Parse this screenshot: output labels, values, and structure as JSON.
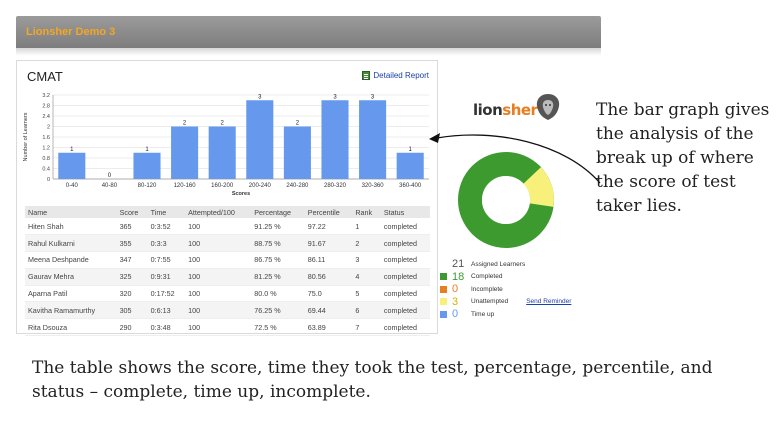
{
  "app": {
    "title": "Lionsher Demo 3"
  },
  "report": {
    "title": "CMAT",
    "detail_link": "Detailed Report"
  },
  "chart_data": {
    "type": "bar",
    "categories": [
      "0-40",
      "40-80",
      "80-120",
      "120-160",
      "160-200",
      "200-240",
      "240-280",
      "280-320",
      "320-360",
      "360-400"
    ],
    "values": [
      1,
      0,
      1,
      2,
      2,
      3,
      2,
      3,
      3,
      1
    ],
    "title": "",
    "xlabel": "Scores",
    "ylabel": "Number of Learners",
    "ylim": [
      0,
      3.2
    ],
    "yticks": [
      "0",
      "0.4",
      "0.8",
      "1.2",
      "1.6",
      "2",
      "2.4",
      "2.8",
      "3.2"
    ],
    "color": "#6699ee",
    "grid": true
  },
  "table": {
    "headers": [
      "Name",
      "Score",
      "Time",
      "Attempted/100",
      "Percentage",
      "Percentile",
      "Rank",
      "Status"
    ],
    "rows": [
      [
        "Hiten Shah",
        "365",
        "0:3:52",
        "100",
        "91.25 %",
        "97.22",
        "1",
        "completed"
      ],
      [
        "Rahul Kulkarni",
        "355",
        "0:3:3",
        "100",
        "88.75 %",
        "91.67",
        "2",
        "completed"
      ],
      [
        "Meena Deshpande",
        "347",
        "0:7:55",
        "100",
        "86.75 %",
        "86.11",
        "3",
        "completed"
      ],
      [
        "Gaurav Mehra",
        "325",
        "0:9:31",
        "100",
        "81.25 %",
        "80.56",
        "4",
        "completed"
      ],
      [
        "Aparna Patil",
        "320",
        "0:17:52",
        "100",
        "80.0 %",
        "75.0",
        "5",
        "completed"
      ],
      [
        "Kavitha Ramamurthy",
        "305",
        "0:6:13",
        "100",
        "76.25 %",
        "69.44",
        "6",
        "completed"
      ],
      [
        "Rita Dsouza",
        "290",
        "0:3:48",
        "100",
        "72.5 %",
        "63.89",
        "7",
        "completed"
      ]
    ]
  },
  "logo": {
    "part1": "lion",
    "part2": "sher"
  },
  "summary": {
    "assigned": {
      "count": "21",
      "label": "Assigned Learners"
    },
    "items": [
      {
        "count": "18",
        "label": "Completed",
        "color": "#3c9a2f"
      },
      {
        "count": "0",
        "label": "Incomplete",
        "color": "#e67e22"
      },
      {
        "count": "3",
        "label": "Unattempted",
        "color": "#f7f07a"
      },
      {
        "count": "0",
        "label": "Time up",
        "color": "#6699ee"
      }
    ],
    "send_reminder": "Send Reminder"
  },
  "annotations": {
    "right": "The bar graph gives the analysis of the break up of where the score of test taker lies.",
    "bottom": "The table shows the score, time they took the test, percentage, percentile, and status – complete, time up, incomplete."
  }
}
